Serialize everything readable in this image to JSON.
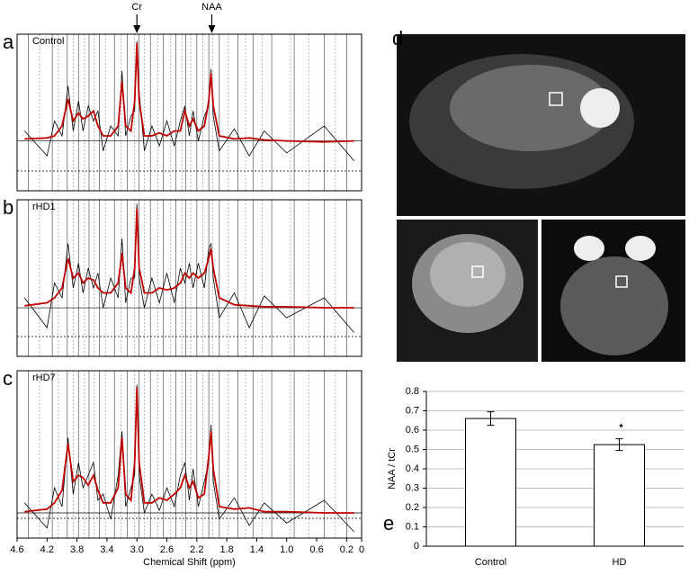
{
  "panel_d": {
    "label": "d"
  },
  "chart_data": [
    {
      "type": "line",
      "panel": "a",
      "label": "Control",
      "x": [
        4.5,
        4.2,
        4.1,
        4.0,
        3.92,
        3.85,
        3.78,
        3.72,
        3.65,
        3.58,
        3.52,
        3.45,
        3.35,
        3.25,
        3.2,
        3.15,
        3.08,
        3.03,
        3.0,
        2.97,
        2.9,
        2.8,
        2.7,
        2.6,
        2.5,
        2.42,
        2.36,
        2.3,
        2.25,
        2.18,
        2.1,
        2.04,
        2.01,
        1.98,
        1.9,
        1.7,
        1.5,
        1.3,
        1.0,
        0.5,
        0.1
      ],
      "xlim": [
        4.6,
        0
      ],
      "ylim": [
        -0.5,
        1.07
      ],
      "markers": [
        4.45,
        4.3,
        4.13,
        4.05,
        3.93,
        3.85,
        3.78,
        3.7,
        3.64,
        3.57,
        3.5,
        3.42,
        3.3,
        3.21,
        3.13,
        3.03,
        2.97,
        2.9,
        2.82,
        2.72,
        2.65,
        2.55,
        2.48,
        2.4,
        2.35,
        2.28,
        2.2,
        2.12,
        2.04,
        1.99,
        1.9,
        1.78,
        1.65,
        1.55,
        1.45,
        1.33,
        1.2,
        0.95,
        0.9,
        0.7,
        0.5,
        0.35,
        0.2
      ],
      "annotations": [
        {
          "text": "Cr",
          "x": 3.0
        },
        {
          "text": "NAA",
          "x": 2.0
        }
      ],
      "series": [
        {
          "color": "#000000",
          "values": [
            0.1,
            -0.15,
            0.2,
            0.05,
            0.55,
            0.1,
            0.4,
            0.1,
            0.35,
            0.2,
            0.3,
            -0.1,
            0.15,
            0.05,
            0.7,
            0.05,
            0.25,
            0.3,
            1.0,
            0.5,
            -0.1,
            0.15,
            -0.05,
            0.2,
            -0.05,
            0.2,
            0.35,
            0.05,
            0.3,
            0,
            0.25,
            0.35,
            0.72,
            0.25,
            -0.1,
            0.12,
            -0.15,
            0.1,
            -0.12,
            0.15,
            -0.2
          ]
        },
        {
          "color": "#c00000",
          "values": [
            0.02,
            0.03,
            0.05,
            0.15,
            0.42,
            0.2,
            0.28,
            0.22,
            0.25,
            0.3,
            0.15,
            0.05,
            0.05,
            0.15,
            0.6,
            0.15,
            0.1,
            0.4,
            0.98,
            0.4,
            0.05,
            0.05,
            0.08,
            0.05,
            0.1,
            0.1,
            0.3,
            0.15,
            0.22,
            0.1,
            0.15,
            0.4,
            0.68,
            0.35,
            0.05,
            0.02,
            0.03,
            0.01,
            0,
            -0.01,
            0
          ]
        }
      ]
    },
    {
      "type": "line",
      "panel": "b",
      "label": "rHD1",
      "x": [
        4.5,
        4.2,
        4.1,
        4.0,
        3.92,
        3.85,
        3.78,
        3.72,
        3.65,
        3.58,
        3.52,
        3.45,
        3.35,
        3.25,
        3.2,
        3.15,
        3.08,
        3.03,
        3.0,
        2.97,
        2.9,
        2.8,
        2.7,
        2.6,
        2.5,
        2.42,
        2.36,
        2.3,
        2.25,
        2.18,
        2.1,
        2.04,
        2.01,
        1.98,
        1.9,
        1.7,
        1.5,
        1.3,
        1.0,
        0.5,
        0.1
      ],
      "xlim": [
        4.6,
        0
      ],
      "ylim": [
        -0.49,
        1.09
      ],
      "markers": [
        4.45,
        4.3,
        4.13,
        4.05,
        3.93,
        3.85,
        3.78,
        3.7,
        3.64,
        3.57,
        3.5,
        3.42,
        3.3,
        3.21,
        3.13,
        3.03,
        2.97,
        2.9,
        2.82,
        2.72,
        2.65,
        2.55,
        2.48,
        2.4,
        2.35,
        2.28,
        2.2,
        2.12,
        2.04,
        1.99,
        1.9,
        1.78,
        1.65,
        1.55,
        1.45,
        1.33,
        1.2,
        0.95,
        0.9,
        0.7,
        0.5,
        0.35,
        0.2
      ],
      "series": [
        {
          "color": "#000000",
          "values": [
            0.1,
            -0.2,
            0.25,
            0.1,
            0.65,
            0.2,
            0.45,
            0.15,
            0.4,
            0.2,
            0.35,
            0.0,
            0.3,
            0.1,
            0.7,
            0.05,
            0.3,
            0.3,
            1.05,
            0.3,
            0.0,
            0.3,
            0.05,
            0.35,
            0.05,
            0.4,
            0.25,
            0.45,
            0.2,
            0.45,
            0.2,
            0.6,
            0.65,
            0.3,
            -0.1,
            0.15,
            -0.2,
            0.12,
            -0.1,
            0.1,
            -0.25
          ]
        },
        {
          "color": "#c00000",
          "values": [
            0.02,
            0.05,
            0.1,
            0.2,
            0.5,
            0.3,
            0.35,
            0.25,
            0.3,
            0.28,
            0.2,
            0.15,
            0.15,
            0.25,
            0.55,
            0.2,
            0.15,
            0.4,
            1.0,
            0.4,
            0.15,
            0.15,
            0.2,
            0.18,
            0.2,
            0.25,
            0.35,
            0.3,
            0.35,
            0.3,
            0.35,
            0.5,
            0.6,
            0.4,
            0.1,
            0.03,
            0.02,
            0.01,
            0.01,
            0,
            0
          ]
        }
      ]
    },
    {
      "type": "line",
      "panel": "c",
      "label": "rHD7",
      "xlabel": "Chemical Shift (ppm)",
      "x": [
        4.5,
        4.2,
        4.1,
        4.0,
        3.92,
        3.85,
        3.78,
        3.72,
        3.65,
        3.58,
        3.52,
        3.45,
        3.35,
        3.25,
        3.2,
        3.15,
        3.08,
        3.03,
        3.0,
        2.97,
        2.9,
        2.8,
        2.7,
        2.6,
        2.5,
        2.42,
        2.36,
        2.3,
        2.25,
        2.18,
        2.1,
        2.04,
        2.01,
        1.98,
        1.9,
        1.7,
        1.5,
        1.3,
        1.0,
        0.5,
        0.1
      ],
      "xlim": [
        4.6,
        0
      ],
      "ylim": [
        -0.2,
        1.13
      ],
      "xticks": [
        4.6,
        4.2,
        3.8,
        3.4,
        {
          "value": 3,
          "label": "3.0"
        },
        2.6,
        2.2,
        1.8,
        1.4,
        {
          "value": 1,
          "label": "1.0"
        },
        0.6,
        0.2,
        0
      ],
      "markers": [
        4.45,
        4.3,
        4.13,
        4.05,
        3.93,
        3.85,
        3.78,
        3.7,
        3.64,
        3.57,
        3.5,
        3.42,
        3.3,
        3.21,
        3.13,
        3.03,
        2.97,
        2.9,
        2.82,
        2.72,
        2.65,
        2.55,
        2.48,
        2.4,
        2.35,
        2.28,
        2.2,
        2.12,
        2.04,
        1.99,
        1.9,
        1.78,
        1.65,
        1.55,
        1.45,
        1.33,
        1.2,
        0.95,
        0.9,
        0.7,
        0.5,
        0.35,
        0.2
      ],
      "series": [
        {
          "color": "#000000",
          "values": [
            0.08,
            -0.12,
            0.2,
            0.05,
            0.6,
            0.15,
            0.4,
            0.2,
            0.3,
            0.4,
            0.1,
            0.15,
            -0.05,
            0.3,
            0.65,
            0.05,
            0.2,
            0.3,
            1.02,
            0.3,
            0.0,
            0.15,
            0.02,
            0.2,
            0.05,
            0.3,
            0.4,
            0.1,
            0.35,
            0.05,
            0.25,
            0.4,
            0.7,
            0.25,
            -0.05,
            0.12,
            -0.1,
            0.08,
            -0.08,
            0.1,
            -0.15
          ]
        },
        {
          "color": "#c00000",
          "values": [
            0.01,
            0.03,
            0.08,
            0.18,
            0.55,
            0.25,
            0.3,
            0.28,
            0.22,
            0.3,
            0.18,
            0.08,
            0.08,
            0.2,
            0.6,
            0.15,
            0.1,
            0.4,
            1.0,
            0.4,
            0.08,
            0.08,
            0.12,
            0.1,
            0.15,
            0.2,
            0.3,
            0.2,
            0.25,
            0.12,
            0.15,
            0.45,
            0.65,
            0.35,
            0.05,
            0.03,
            0.04,
            0.01,
            0.01,
            0,
            0
          ]
        }
      ]
    },
    {
      "type": "bar",
      "panel": "e",
      "ylabel": "NAA / tCr",
      "categories": [
        "Control",
        "HD"
      ],
      "values": [
        0.66,
        0.525
      ],
      "errors": [
        0.035,
        0.03
      ],
      "color": "#ffffff",
      "ylim": [
        0,
        0.8
      ],
      "yticks": [
        0,
        0.1,
        0.2,
        0.3,
        0.4,
        0.5,
        0.6,
        0.7,
        0.8
      ],
      "grid": true,
      "annotations": [
        {
          "text": "*",
          "category": 1
        }
      ]
    }
  ]
}
